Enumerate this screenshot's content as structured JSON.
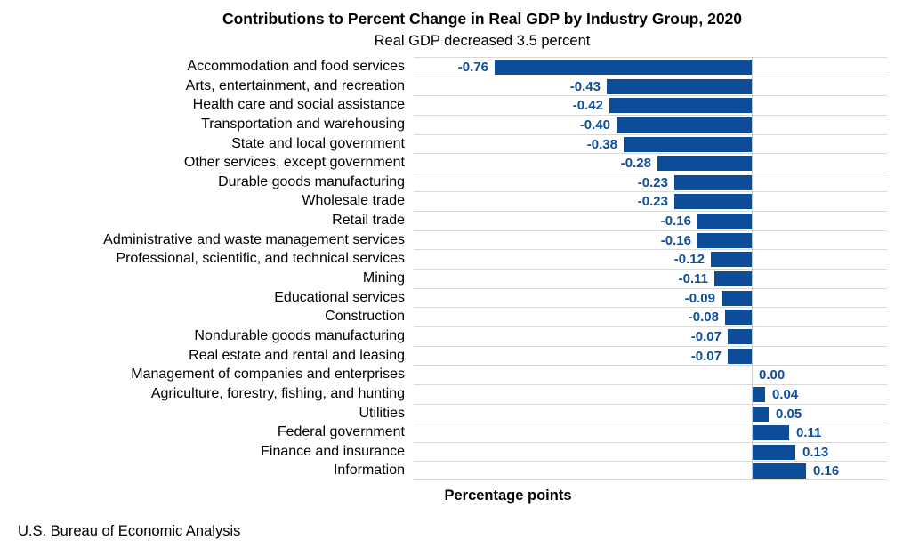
{
  "title": "Contributions to Percent Change in Real GDP by Industry Group, 2020",
  "subtitle": "Real GDP decreased 3.5 percent",
  "source": "U.S. Bureau of Economic Analysis",
  "chart_data": {
    "type": "bar",
    "orientation": "horizontal",
    "title": "Contributions to Percent Change in Real GDP by Industry Group, 2020",
    "subtitle": "Real GDP decreased 3.5 percent",
    "xlabel": "Percentage points",
    "ylabel": "",
    "xlim": [
      -1.0,
      0.4
    ],
    "grid": "horizontal-row-separators",
    "categories": [
      "Accommodation and food services",
      "Arts, entertainment, and recreation",
      "Health care and social assistance",
      "Transportation and warehousing",
      "State and local government",
      "Other services, except government",
      "Durable goods manufacturing",
      "Wholesale trade",
      "Retail trade",
      "Administrative and waste management services",
      "Professional, scientific, and technical services",
      "Mining",
      "Educational services",
      "Construction",
      "Nondurable goods manufacturing",
      "Real estate and rental and leasing",
      "Management of companies and enterprises",
      "Agriculture, forestry, fishing, and hunting",
      "Utilities",
      "Federal government",
      "Finance and insurance",
      "Information"
    ],
    "values": [
      -0.76,
      -0.43,
      -0.42,
      -0.4,
      -0.38,
      -0.28,
      -0.23,
      -0.23,
      -0.16,
      -0.16,
      -0.12,
      -0.11,
      -0.09,
      -0.08,
      -0.07,
      -0.07,
      0.0,
      0.04,
      0.05,
      0.11,
      0.13,
      0.16
    ],
    "value_label_decimals": 2,
    "bar_color": "#0d4c99",
    "value_label_color": "#0f4e9c",
    "gridline_color": "#d9d9d9",
    "zero_line_color": "#c9c9c9"
  }
}
